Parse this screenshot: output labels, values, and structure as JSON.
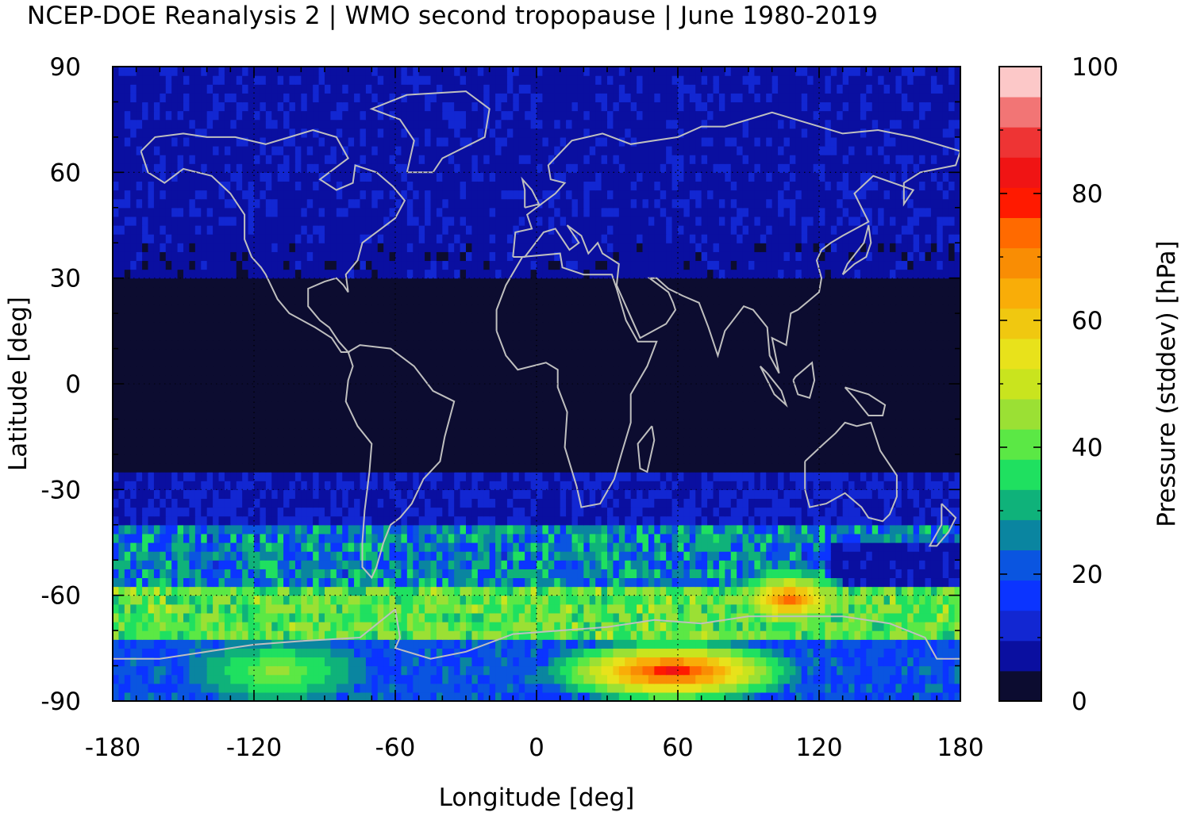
{
  "title": "NCEP-DOE Reanalysis 2 | WMO second tropopause | June 1980-2019",
  "chart_data": {
    "type": "heatmap",
    "title": "NCEP-DOE Reanalysis 2 | WMO second tropopause | June 1980-2019",
    "xlabel": "Longitude [deg]",
    "ylabel": "Latitude [deg]",
    "xlim": [
      -180,
      180
    ],
    "ylim": [
      -90,
      90
    ],
    "xticks": [
      "-180",
      "-120",
      "-60",
      "0",
      "60",
      "120",
      "180"
    ],
    "yticks": [
      "90",
      "60",
      "30",
      "0",
      "-30",
      "-60",
      "-90"
    ],
    "grid": "dotted at 60 deg intervals",
    "colorbar": {
      "label": "Pressure (stddev) [hPa]",
      "range": [
        0,
        100
      ],
      "ticks": [
        "0",
        "20",
        "40",
        "60",
        "80",
        "100"
      ],
      "colors": [
        "#0c0c30",
        "#0a0fa0",
        "#1227d2",
        "#0b34ff",
        "#0a55e0",
        "#0a85a0",
        "#0fb27a",
        "#1fe060",
        "#5be845",
        "#9be034",
        "#c9e41e",
        "#e8e21b",
        "#f0c810",
        "#f9ad08",
        "#f98d04",
        "#ff6a00",
        "#ff1a00",
        "#f01414",
        "#ee3434",
        "#f27575",
        "#fcc8c8"
      ]
    },
    "latitude_band_profile": [
      {
        "lat_range": [
          65,
          90
        ],
        "value": 8
      },
      {
        "lat_range": [
          40,
          65
        ],
        "value": 8
      },
      {
        "lat_range": [
          30,
          40
        ],
        "value": 4
      },
      {
        "lat_range": [
          -25,
          30
        ],
        "value": 0
      },
      {
        "lat_range": [
          -40,
          -25
        ],
        "value": 8
      },
      {
        "lat_range": [
          -58,
          -40
        ],
        "value": 25
      },
      {
        "lat_range": [
          -72,
          -58
        ],
        "value": 40
      },
      {
        "lat_range": [
          -90,
          -72
        ],
        "value": 20
      }
    ],
    "features": [
      {
        "lon_range": [
          20,
          95
        ],
        "lat_range": [
          -85,
          -78
        ],
        "value": 85
      },
      {
        "lon_range": [
          -130,
          -90
        ],
        "lat_range": [
          -85,
          -78
        ],
        "value": 45
      },
      {
        "lon_range": [
          100,
          115
        ],
        "lat_range": [
          -64,
          -58
        ],
        "value": 75
      }
    ],
    "overlay": "coastlines"
  }
}
